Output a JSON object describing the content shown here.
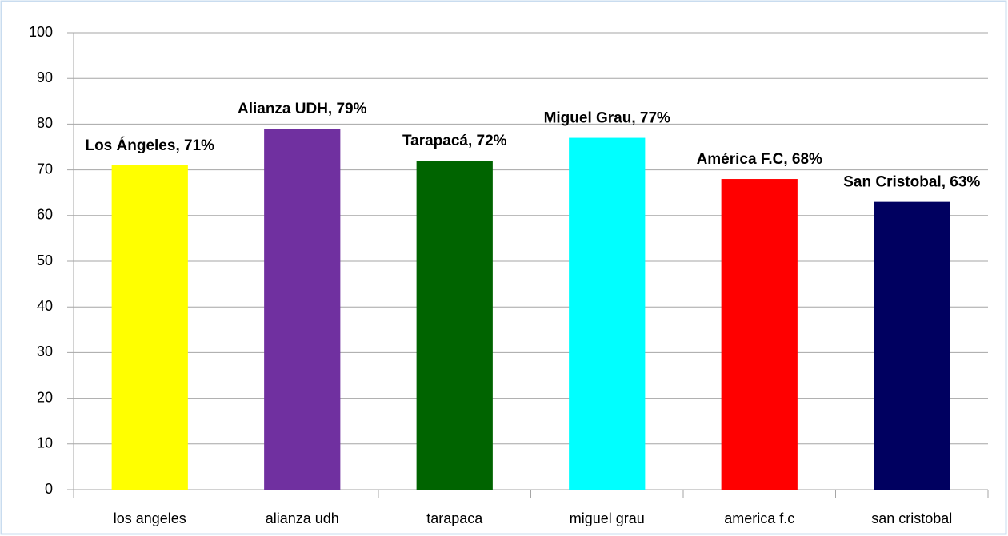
{
  "chart_data": {
    "type": "bar",
    "categories": [
      "los angeles",
      "alianza udh",
      "tarapaca",
      "miguel grau",
      "america f.c",
      "san cristobal"
    ],
    "values": [
      71,
      79,
      72,
      77,
      68,
      63
    ],
    "value_labels": [
      "Los Ángeles, 71%",
      "Alianza UDH, 79%",
      "Tarapacá, 72%",
      "Miguel Grau, 77%",
      "América F.C, 68%",
      "San Cristobal, 63%"
    ],
    "colors": [
      "#ffff00",
      "#7030a0",
      "#006400",
      "#00ffff",
      "#ff0000",
      "#000060"
    ],
    "ylim": [
      0,
      100
    ],
    "yticks": [
      0,
      10,
      20,
      30,
      40,
      50,
      60,
      70,
      80,
      90,
      100
    ],
    "grid": true
  }
}
